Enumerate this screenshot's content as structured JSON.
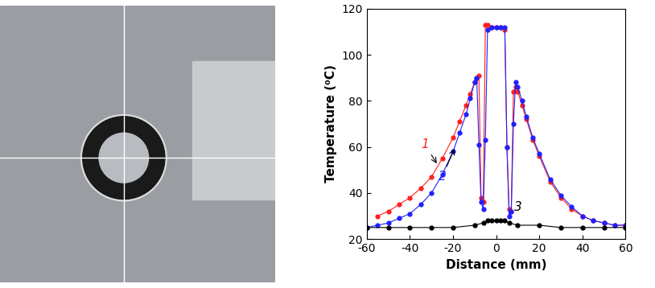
{
  "chart_data": {
    "type": "line",
    "x_label": "Distance (mm)",
    "y_label": "Temperature (⁰C)",
    "xlim": [
      -60,
      60
    ],
    "xticks": [
      -60,
      -40,
      -20,
      0,
      20,
      40,
      60
    ],
    "ylim": [
      20,
      120
    ],
    "yticks": [
      20,
      40,
      60,
      80,
      100,
      120
    ],
    "grid": false,
    "marker": "o",
    "line_style": "solid",
    "series": [
      {
        "name": "1",
        "color": "#ff2020",
        "label_at": [
          -33,
          61
        ],
        "arrow_to": [
          -27,
          52
        ],
        "x": [
          -55,
          -50,
          -45,
          -40,
          -35,
          -30,
          -25,
          -20,
          -17,
          -14,
          -12,
          -10,
          -9,
          -8,
          -7,
          -6,
          -5,
          -4,
          -2,
          0,
          2,
          4,
          5,
          6,
          7,
          8,
          9,
          10,
          12,
          14,
          17,
          20,
          25,
          30,
          35,
          40,
          45,
          50,
          55,
          60
        ],
        "values": [
          30,
          32,
          35,
          38,
          42,
          47,
          55,
          64,
          71,
          78,
          83,
          88,
          90,
          91,
          38,
          36,
          113,
          113,
          112,
          112,
          112,
          111,
          60,
          33,
          32,
          84,
          86,
          84,
          78,
          72,
          63,
          56,
          45,
          38,
          33,
          30,
          28,
          27,
          26,
          26
        ]
      },
      {
        "name": "2",
        "color": "#2020ff",
        "label_at": [
          -25,
          47
        ],
        "arrow_to": [
          -19,
          60
        ],
        "x": [
          -60,
          -55,
          -50,
          -45,
          -40,
          -35,
          -30,
          -25,
          -20,
          -17,
          -14,
          -12,
          -10,
          -9,
          -8,
          -7,
          -6,
          -5,
          -4,
          -2,
          0,
          2,
          4,
          5,
          6,
          7,
          8,
          9,
          10,
          12,
          14,
          17,
          20,
          25,
          30,
          35,
          40,
          45,
          50,
          55,
          60
        ],
        "values": [
          25,
          26,
          27,
          29,
          31,
          35,
          40,
          48,
          58,
          66,
          74,
          81,
          88,
          90,
          61,
          36,
          33,
          63,
          111,
          112,
          112,
          112,
          112,
          60,
          30,
          32,
          70,
          88,
          86,
          80,
          73,
          64,
          57,
          46,
          39,
          34,
          30,
          28,
          27,
          26,
          26
        ]
      },
      {
        "name": "3",
        "color": "#000000",
        "label_at": [
          10,
          34
        ],
        "arrow_to": null,
        "x": [
          -60,
          -50,
          -40,
          -30,
          -20,
          -10,
          -6,
          -4,
          -2,
          0,
          2,
          4,
          6,
          10,
          20,
          30,
          40,
          50,
          60
        ],
        "values": [
          25,
          25,
          25,
          25,
          25,
          26,
          27,
          28,
          28,
          28,
          28,
          28,
          27,
          26,
          26,
          25,
          25,
          25,
          25
        ]
      }
    ]
  }
}
